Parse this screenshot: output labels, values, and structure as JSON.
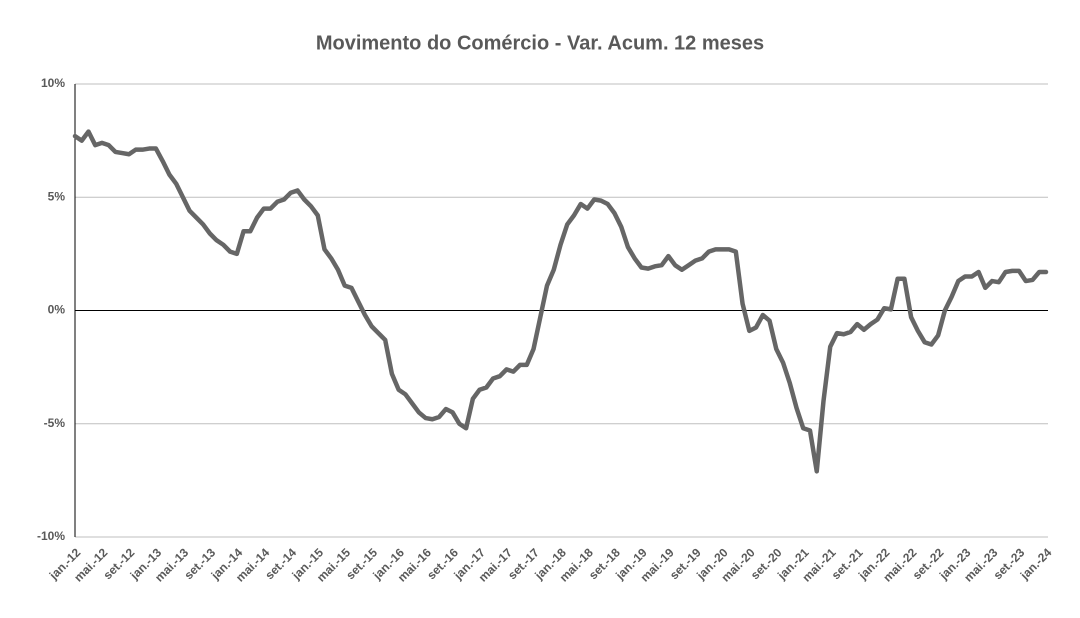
{
  "chart_data": {
    "type": "line",
    "title": "Movimento do Comércio - Var. Acum. 12 meses",
    "categories": [
      "jan.-12",
      null,
      null,
      null,
      "mai.-12",
      null,
      null,
      null,
      "set.-12",
      null,
      null,
      null,
      "jan.-13",
      null,
      null,
      null,
      "mai.-13",
      null,
      null,
      null,
      "set.-13",
      null,
      null,
      null,
      "jan.-14",
      null,
      null,
      null,
      "mai.-14",
      null,
      null,
      null,
      "set.-14",
      null,
      null,
      null,
      "jan.-15",
      null,
      null,
      null,
      "mai.-15",
      null,
      null,
      null,
      "set.-15",
      null,
      null,
      null,
      "jan.-16",
      null,
      null,
      null,
      "mai.-16",
      null,
      null,
      null,
      "set.-16",
      null,
      null,
      null,
      "jan.-17",
      null,
      null,
      null,
      "mai.-17",
      null,
      null,
      null,
      "set.-17",
      null,
      null,
      null,
      "jan.-18",
      null,
      null,
      null,
      "mai.-18",
      null,
      null,
      null,
      "set.-18",
      null,
      null,
      null,
      "jan.-19",
      null,
      null,
      null,
      "mai.-19",
      null,
      null,
      null,
      "set.-19",
      null,
      null,
      null,
      "jan.-20",
      null,
      null,
      null,
      "mai.-20",
      null,
      null,
      null,
      "set.-20",
      null,
      null,
      null,
      "jan.-21",
      null,
      null,
      null,
      "mai.-21",
      null,
      null,
      null,
      "set.-21",
      null,
      null,
      null,
      "jan.-22",
      null,
      null,
      null,
      "mai.-22",
      null,
      null,
      null,
      "set.-22",
      null,
      null,
      null,
      "jan.-23",
      null,
      null,
      null,
      "mai.-23",
      null,
      null,
      null,
      "set.-23",
      null,
      null,
      null,
      "jan.-24"
    ],
    "values": [
      7.7,
      7.5,
      7.9,
      7.3,
      7.4,
      7.3,
      7.0,
      6.95,
      6.9,
      7.1,
      7.1,
      7.15,
      7.15,
      6.6,
      6.0,
      5.6,
      5.0,
      4.4,
      4.1,
      3.8,
      3.4,
      3.1,
      2.9,
      2.6,
      2.5,
      3.5,
      3.5,
      4.1,
      4.5,
      4.5,
      4.8,
      4.9,
      5.2,
      5.3,
      4.9,
      4.6,
      4.2,
      2.7,
      2.3,
      1.8,
      1.1,
      1.0,
      0.4,
      -0.2,
      -0.7,
      -1.0,
      -1.3,
      -2.8,
      -3.5,
      -3.7,
      -4.1,
      -4.5,
      -4.75,
      -4.8,
      -4.7,
      -4.35,
      -4.5,
      -5.0,
      -5.2,
      -3.9,
      -3.5,
      -3.4,
      -3.0,
      -2.9,
      -2.6,
      -2.7,
      -2.4,
      -2.4,
      -1.7,
      -0.3,
      1.1,
      1.8,
      2.9,
      3.8,
      4.2,
      4.7,
      4.5,
      4.9,
      4.85,
      4.7,
      4.3,
      3.7,
      2.8,
      2.3,
      1.9,
      1.85,
      1.95,
      2.0,
      2.4,
      2.0,
      1.8,
      2.0,
      2.2,
      2.3,
      2.6,
      2.7,
      2.7,
      2.7,
      2.6,
      0.3,
      -0.9,
      -0.75,
      -0.2,
      -0.45,
      -1.7,
      -2.3,
      -3.2,
      -4.3,
      -5.2,
      -5.3,
      -7.1,
      -4.0,
      -1.6,
      -1.0,
      -1.05,
      -0.95,
      -0.6,
      -0.85,
      -0.6,
      -0.4,
      0.1,
      0.05,
      1.4,
      1.4,
      -0.3,
      -0.9,
      -1.4,
      -1.5,
      -1.1,
      0.0,
      0.6,
      1.3,
      1.5,
      1.5,
      1.7,
      1.0,
      1.3,
      1.25,
      1.7,
      1.75,
      1.75,
      1.3,
      1.35,
      1.7,
      1.7
    ],
    "color": "#666666",
    "ylim": [
      -10,
      10
    ],
    "yticks": [
      {
        "value": -10,
        "label": "-10%"
      },
      {
        "value": -5,
        "label": "-5%"
      },
      {
        "value": 0,
        "label": "0%"
      },
      {
        "value": 5,
        "label": "5%"
      },
      {
        "value": 10,
        "label": "10%"
      }
    ],
    "grid": true
  }
}
